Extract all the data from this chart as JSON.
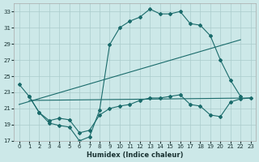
{
  "xlabel": "Humidex (Indice chaleur)",
  "bg_color": "#cce8e8",
  "grid_color": "#aacccc",
  "line_color": "#1a6b6b",
  "xlim": [
    -0.5,
    23.5
  ],
  "ylim": [
    17,
    34
  ],
  "yticks": [
    17,
    19,
    21,
    23,
    25,
    27,
    29,
    31,
    33
  ],
  "xticks": [
    0,
    1,
    2,
    3,
    4,
    5,
    6,
    7,
    8,
    9,
    10,
    11,
    12,
    13,
    14,
    15,
    16,
    17,
    18,
    19,
    20,
    21,
    22,
    23
  ],
  "curve1_x": [
    0,
    1,
    2,
    3,
    4,
    5,
    6,
    7,
    8,
    9,
    10,
    11,
    12,
    13,
    14,
    15,
    16,
    17,
    18,
    19,
    20,
    21,
    22
  ],
  "curve1_y": [
    24.0,
    22.5,
    20.5,
    19.2,
    18.9,
    18.7,
    17.0,
    17.5,
    20.8,
    28.9,
    31.0,
    31.8,
    32.3,
    33.3,
    32.7,
    32.7,
    33.0,
    31.5,
    31.3,
    30.0,
    27.0,
    24.5,
    22.5
  ],
  "curve2_x": [
    1,
    2,
    3,
    4,
    5,
    6,
    7,
    8,
    9,
    10,
    11,
    12,
    13,
    14,
    15,
    16,
    17,
    18,
    19,
    20,
    21,
    22,
    23
  ],
  "curve2_y": [
    22.5,
    20.5,
    19.5,
    19.8,
    19.6,
    18.0,
    18.3,
    20.2,
    21.0,
    21.3,
    21.5,
    22.0,
    22.3,
    22.3,
    22.5,
    22.7,
    21.5,
    21.3,
    20.2,
    20.0,
    21.8,
    22.2,
    22.3
  ],
  "line1_x": [
    0,
    22
  ],
  "line1_y": [
    21.5,
    29.5
  ],
  "line2_x": [
    1,
    23
  ],
  "line2_y": [
    22.0,
    22.3
  ],
  "figwidth": 3.2,
  "figheight": 2.0,
  "dpi": 100
}
